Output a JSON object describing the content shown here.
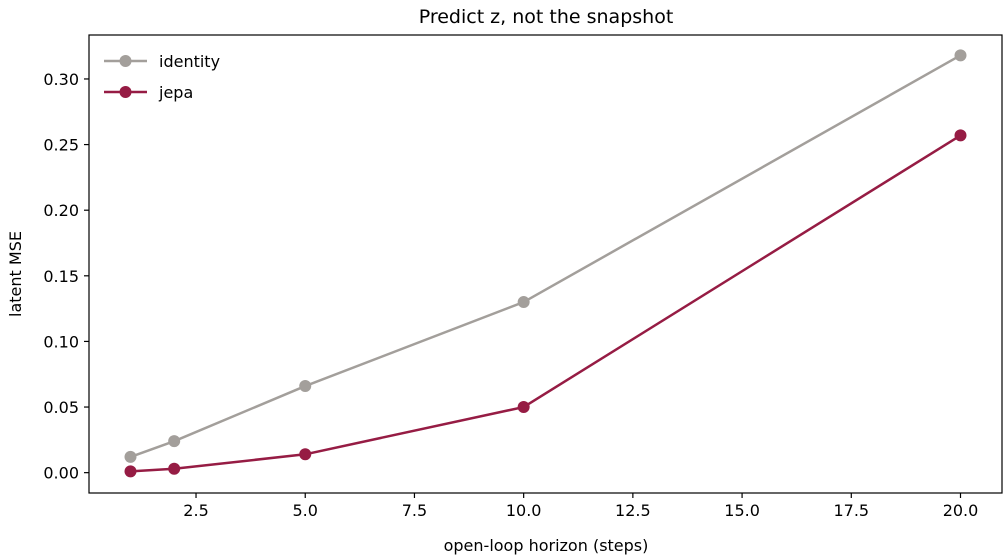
{
  "chart_data": {
    "type": "line",
    "title": "Predict z, not the snapshot",
    "xlabel": "open-loop horizon (steps)",
    "ylabel": "latent MSE",
    "xlim": [
      0.05,
      20.95
    ],
    "ylim": [
      -0.0155,
      0.3335
    ],
    "xticks": [
      2.5,
      5.0,
      7.5,
      10.0,
      12.5,
      15.0,
      17.5,
      20.0
    ],
    "xtick_labels": [
      "2.5",
      "5.0",
      "7.5",
      "10.0",
      "12.5",
      "15.0",
      "17.5",
      "20.0"
    ],
    "yticks": [
      0.0,
      0.05,
      0.1,
      0.15,
      0.2,
      0.25,
      0.3
    ],
    "ytick_labels": [
      "0.00",
      "0.05",
      "0.10",
      "0.15",
      "0.20",
      "0.25",
      "0.30"
    ],
    "grid": false,
    "legend_position": "top-left",
    "x": [
      1,
      2,
      5,
      10,
      20
    ],
    "series": [
      {
        "name": "identity",
        "color": "#a39f9b",
        "values": [
          0.012,
          0.024,
          0.066,
          0.13,
          0.318
        ]
      },
      {
        "name": "jepa",
        "color": "#961c44",
        "values": [
          0.001,
          0.003,
          0.014,
          0.05,
          0.257
        ]
      }
    ]
  }
}
